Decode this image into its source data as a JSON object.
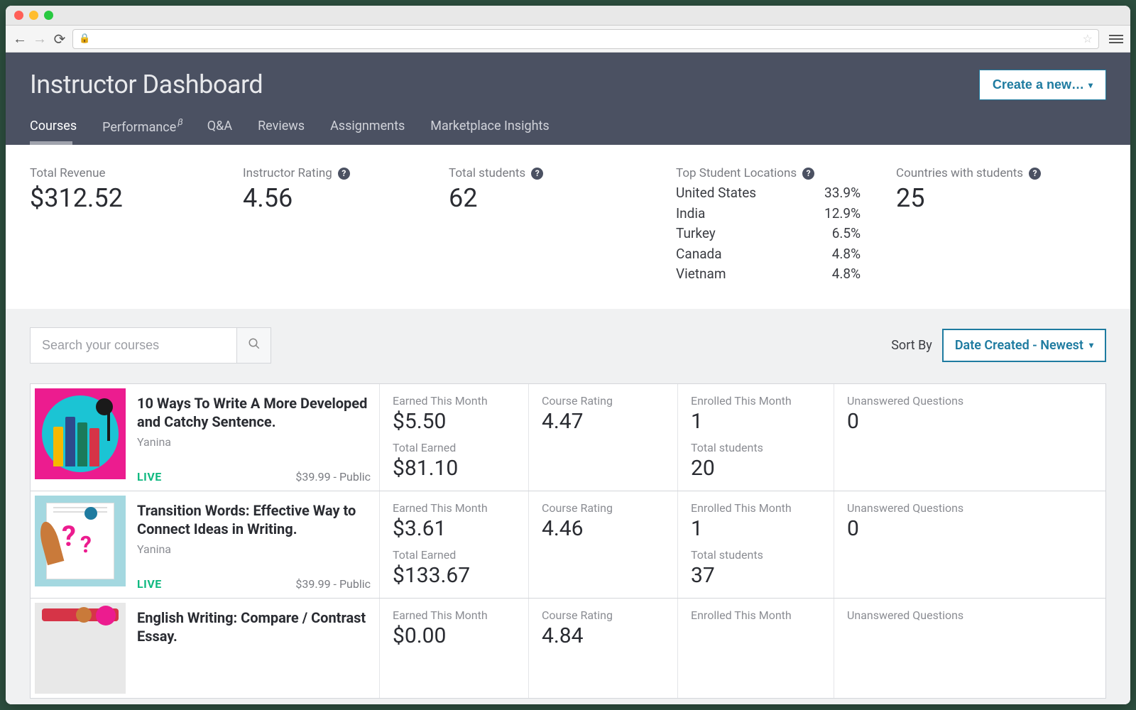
{
  "header": {
    "title": "Instructor Dashboard",
    "create_button": "Create a new…",
    "tabs": [
      {
        "label": "Courses",
        "active": true
      },
      {
        "label": "Performance",
        "beta": true
      },
      {
        "label": "Q&A"
      },
      {
        "label": "Reviews"
      },
      {
        "label": "Assignments"
      },
      {
        "label": "Marketplace Insights"
      }
    ]
  },
  "stats": {
    "total_revenue": {
      "label": "Total Revenue",
      "value": "$312.52"
    },
    "instructor_rating": {
      "label": "Instructor Rating",
      "value": "4.56",
      "help": true
    },
    "total_students": {
      "label": "Total students",
      "value": "62",
      "help": true
    },
    "top_locations": {
      "label": "Top Student Locations",
      "rows": [
        {
          "country": "United States",
          "pct": "33.9%"
        },
        {
          "country": "India",
          "pct": "12.9%"
        },
        {
          "country": "Turkey",
          "pct": "6.5%"
        },
        {
          "country": "Canada",
          "pct": "4.8%"
        },
        {
          "country": "Vietnam",
          "pct": "4.8%"
        }
      ]
    },
    "countries": {
      "label": "Countries with students",
      "value": "25",
      "help": true
    }
  },
  "search": {
    "placeholder": "Search your courses"
  },
  "sort": {
    "label": "Sort By",
    "value": "Date Created - Newest"
  },
  "column_labels": {
    "earned_month": "Earned This Month",
    "total_earned": "Total Earned",
    "course_rating": "Course Rating",
    "enrolled_month": "Enrolled This Month",
    "total_students": "Total students",
    "unanswered": "Unanswered Questions"
  },
  "courses": [
    {
      "title": "10 Ways To Write A More Developed and Catchy Sentence.",
      "author": "Yanina",
      "status": "LIVE",
      "price": "$39.99 - Public",
      "earned_month": "$5.50",
      "total_earned": "$81.10",
      "rating": "4.47",
      "enrolled_month": "1",
      "total_students": "20",
      "unanswered": "0",
      "thumb": 1
    },
    {
      "title": "Transition Words: Effective Way to Connect Ideas in Writing.",
      "author": "Yanina",
      "status": "LIVE",
      "price": "$39.99 - Public",
      "earned_month": "$3.61",
      "total_earned": "$133.67",
      "rating": "4.46",
      "enrolled_month": "1",
      "total_students": "37",
      "unanswered": "0",
      "thumb": 2
    },
    {
      "title": "English Writing: Compare / Contrast Essay.",
      "author": "",
      "status": "",
      "price": "",
      "earned_month": "$0.00",
      "total_earned": "",
      "rating": "4.84",
      "enrolled_month": "",
      "total_students": "",
      "unanswered": "",
      "thumb": 3
    }
  ],
  "colors": {
    "header_bg": "#4b5162",
    "accent": "#1e7ba0",
    "live": "#10b981",
    "pink": "#ec1c8f",
    "cyan": "#1bc4d4"
  }
}
